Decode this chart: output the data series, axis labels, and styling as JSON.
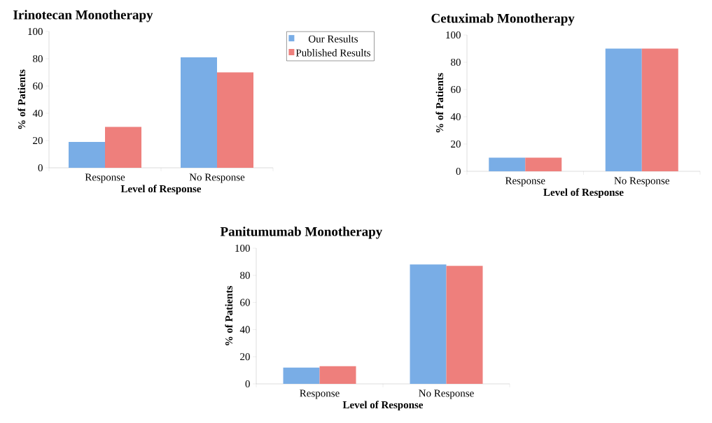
{
  "chart_data": [
    {
      "type": "bar",
      "title": "Irinotecan Monotherapy",
      "xlabel": "Level of Response",
      "ylabel": "% of Patients",
      "categories": [
        "Response",
        "No Response"
      ],
      "ylim": [
        0,
        100
      ],
      "yticks": [
        0,
        20,
        40,
        60,
        80,
        100
      ],
      "legend": "top right",
      "series": [
        {
          "name": "Our Results",
          "color": "#79ade6",
          "values": [
            19,
            81
          ]
        },
        {
          "name": "Published Results",
          "color": "#ee7f7c",
          "values": [
            30,
            70
          ]
        }
      ]
    },
    {
      "type": "bar",
      "title": "Cetuximab Monotherapy",
      "xlabel": "Level of Response",
      "ylabel": "% of Patients",
      "categories": [
        "Response",
        "No Response"
      ],
      "ylim": [
        0,
        100
      ],
      "yticks": [
        0,
        20,
        40,
        60,
        80,
        100
      ],
      "series": [
        {
          "color": "#79ade6",
          "values": [
            10,
            90
          ]
        },
        {
          "color": "#ee7f7c",
          "values": [
            10,
            90
          ]
        }
      ]
    },
    {
      "type": "bar",
      "title": "Panitumumab Monotherapy",
      "xlabel": "Level of Response",
      "ylabel": "% of Patients",
      "categories": [
        "Response",
        "No Response"
      ],
      "ylim": [
        0,
        100
      ],
      "yticks": [
        0,
        20,
        40,
        60,
        80,
        100
      ],
      "series": [
        {
          "color": "#79ade6",
          "values": [
            12,
            88
          ]
        },
        {
          "color": "#ee7f7c",
          "values": [
            13,
            87
          ]
        }
      ]
    }
  ]
}
